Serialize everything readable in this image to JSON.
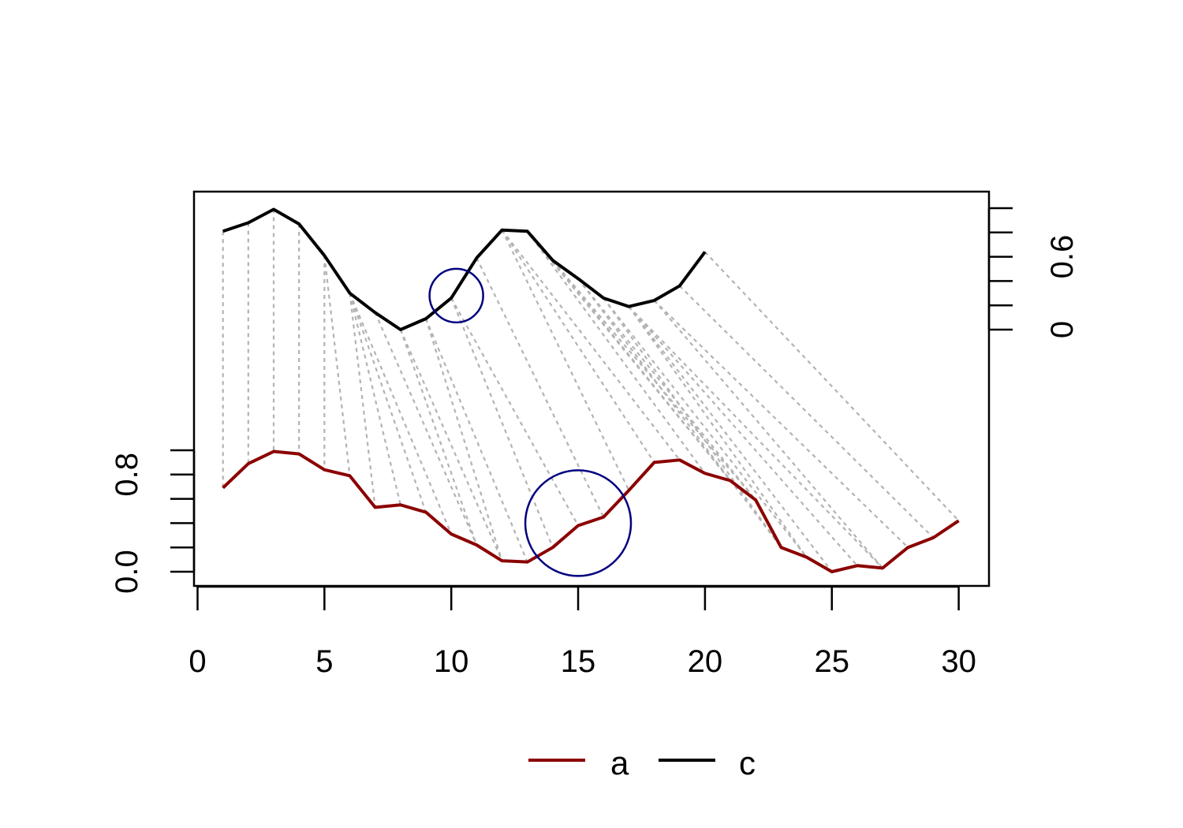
{
  "chart_data": {
    "type": "line",
    "title": "",
    "xlabel": "",
    "ylabel": "",
    "xlim": [
      0,
      30
    ],
    "x_ticks": [
      "0",
      "5",
      "10",
      "15",
      "20",
      "25",
      "30"
    ],
    "y_left_ticks": [
      "0.0",
      "0.8"
    ],
    "y_left_minor_ticks": [
      0.0,
      0.2,
      0.4,
      0.6,
      0.8,
      1.0
    ],
    "y_left_range": [
      0,
      1
    ],
    "y_right_ticks": [
      "0",
      "0.6"
    ],
    "y_right_minor_ticks": [
      0.0,
      0.2,
      0.4,
      0.6,
      0.8,
      1.0
    ],
    "y_right_range": [
      0,
      1
    ],
    "grid": false,
    "legend_position": "bottom",
    "series": [
      {
        "name": "a",
        "color": "#8b0000",
        "axis": "left",
        "x": [
          1,
          2,
          3,
          4,
          5,
          6,
          7,
          8,
          9,
          10,
          11,
          12,
          13,
          14,
          15,
          16,
          17,
          18,
          19,
          20,
          21,
          22,
          23,
          24,
          25,
          26,
          27,
          28,
          29,
          30
        ],
        "values": [
          0.69,
          0.89,
          0.99,
          0.97,
          0.84,
          0.79,
          0.53,
          0.55,
          0.49,
          0.31,
          0.22,
          0.09,
          0.08,
          0.2,
          0.38,
          0.45,
          0.67,
          0.9,
          0.92,
          0.81,
          0.75,
          0.59,
          0.2,
          0.12,
          0.0,
          0.05,
          0.03,
          0.2,
          0.28,
          0.42
        ]
      },
      {
        "name": "c",
        "color": "#000000",
        "axis": "right",
        "x": [
          1,
          2,
          3,
          4,
          5,
          6,
          7,
          8,
          9,
          10,
          11,
          12,
          13,
          14,
          15,
          16,
          17,
          18,
          19,
          20
        ],
        "values": [
          0.81,
          0.88,
          0.99,
          0.87,
          0.61,
          0.3,
          0.14,
          0.0,
          0.09,
          0.26,
          0.59,
          0.82,
          0.81,
          0.57,
          0.42,
          0.26,
          0.19,
          0.24,
          0.36,
          0.64
        ]
      }
    ],
    "alignment": [
      [
        1,
        1
      ],
      [
        2,
        2
      ],
      [
        3,
        3
      ],
      [
        4,
        4
      ],
      [
        5,
        5
      ],
      [
        5,
        6
      ],
      [
        6,
        7
      ],
      [
        6,
        8
      ],
      [
        6,
        9
      ],
      [
        6,
        10
      ],
      [
        7,
        11
      ],
      [
        8,
        11
      ],
      [
        8,
        12
      ],
      [
        9,
        12
      ],
      [
        9,
        13
      ],
      [
        10,
        14
      ],
      [
        10,
        15
      ],
      [
        11,
        16
      ],
      [
        12,
        17
      ],
      [
        12,
        18
      ],
      [
        12,
        19
      ],
      [
        13,
        20
      ],
      [
        13,
        21
      ],
      [
        14,
        21
      ],
      [
        14,
        22
      ],
      [
        15,
        22
      ],
      [
        15,
        23
      ],
      [
        16,
        23
      ],
      [
        16,
        24
      ],
      [
        17,
        24
      ],
      [
        17,
        25
      ],
      [
        17,
        26
      ],
      [
        17,
        27
      ],
      [
        18,
        27
      ],
      [
        18,
        28
      ],
      [
        19,
        29
      ],
      [
        20,
        30
      ]
    ],
    "alignment_color": "#b3b3b3",
    "highlights": [
      {
        "series": "c",
        "x": 10.2,
        "value": 0.28,
        "color": "#000080"
      },
      {
        "series": "a",
        "x": 15.0,
        "value": 0.4,
        "color": "#000080"
      }
    ]
  }
}
